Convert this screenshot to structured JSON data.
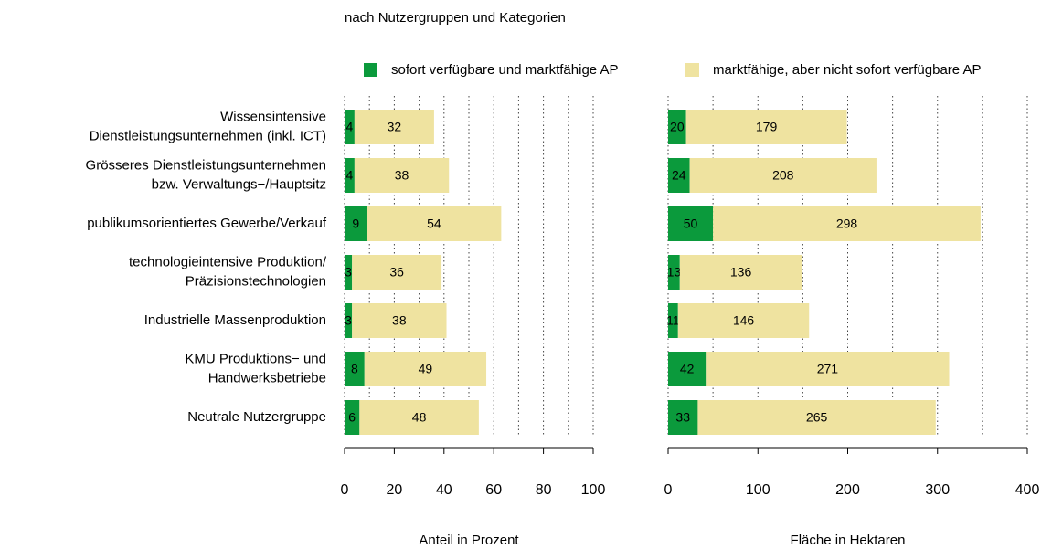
{
  "title": "nach Nutzergruppen und Kategorien",
  "legend": [
    {
      "name": "sofort verfügbare und marktfähige AP",
      "color": "#0b9a3c"
    },
    {
      "name": "marktfähige, aber nicht sofort verfügbare AP",
      "color": "#efe3a0"
    }
  ],
  "categories": [
    [
      "Wissensintensive",
      "Dienstleistungsunternehmen (inkl. ICT)"
    ],
    [
      "Grösseres Dienstleistungsunternehmen",
      "bzw. Verwaltungs−/Hauptsitz"
    ],
    [
      "publikumsorientiertes Gewerbe/Verkauf"
    ],
    [
      "technologieintensive Produktion/",
      "Präzisionstechnologien"
    ],
    [
      "Industrielle  Massenproduktion"
    ],
    [
      "KMU Produktions− und",
      "Handwerksbetriebe"
    ],
    [
      "Neutrale Nutzergruppe"
    ]
  ],
  "chart_data": [
    {
      "type": "stacked_barh",
      "xlabel": "Anteil in Prozent",
      "xlim": [
        0,
        100
      ],
      "xticks": [
        0,
        20,
        40,
        60,
        80,
        100
      ],
      "xgrid": [
        0,
        10,
        20,
        30,
        40,
        50,
        60,
        70,
        80,
        90,
        100
      ],
      "series": [
        {
          "values": [
            4,
            4,
            9,
            3,
            3,
            8,
            6
          ]
        },
        {
          "values": [
            32,
            38,
            54,
            36,
            38,
            49,
            48
          ]
        }
      ]
    },
    {
      "type": "stacked_barh",
      "xlabel": "Fläche in Hektaren",
      "xlim": [
        0,
        400
      ],
      "xticks": [
        0,
        100,
        200,
        300,
        400
      ],
      "xgrid": [
        0,
        50,
        100,
        150,
        200,
        250,
        300,
        350,
        400
      ],
      "series": [
        {
          "values": [
            20,
            24,
            50,
            13,
            11,
            42,
            33
          ]
        },
        {
          "values": [
            179,
            208,
            298,
            136,
            146,
            271,
            265
          ]
        }
      ]
    }
  ]
}
